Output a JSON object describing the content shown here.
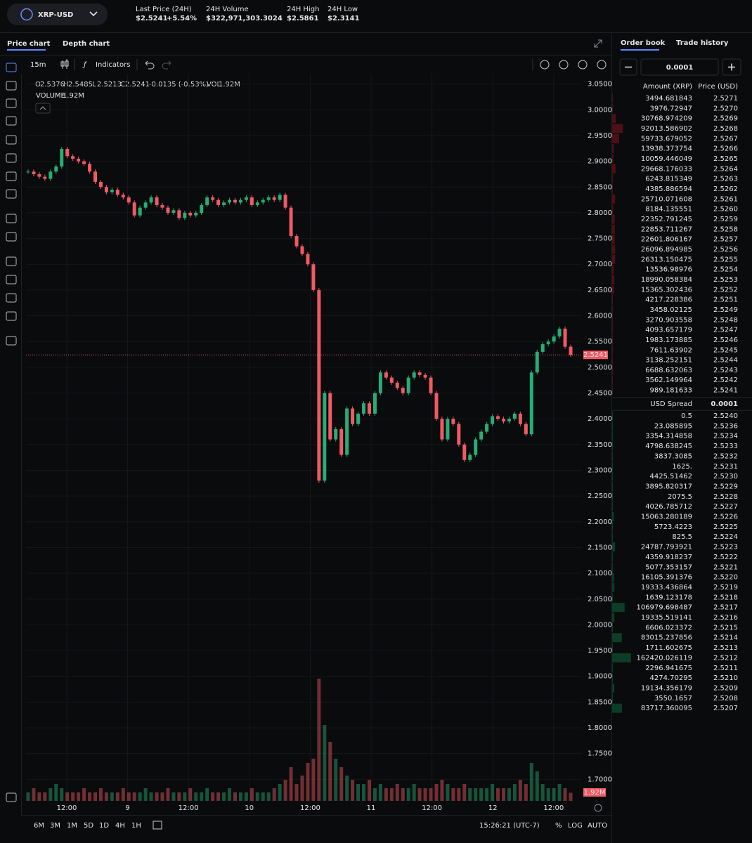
{
  "header": {
    "pair": "XRP-USD",
    "stats": [
      {
        "label": "Last Price (24H)",
        "value": "$2.5241",
        "change": "+5.54%"
      },
      {
        "label": "24H Volume",
        "value": "$322,971,303.3024"
      },
      {
        "label": "24H High",
        "value": "$2.5861"
      },
      {
        "label": "24H Low",
        "value": "$2.3141"
      }
    ]
  },
  "tabs": [
    "Price chart",
    "Depth chart"
  ],
  "toolbar": {
    "interval": "15m",
    "indicators": "Indicators"
  },
  "legend": {
    "items": [
      {
        "key": "O",
        "value": "2.5376"
      },
      {
        "key": "H",
        "value": "2.5485"
      },
      {
        "key": "L",
        "value": "2.5213"
      },
      {
        "key": "C",
        "value": "2.5241"
      }
    ],
    "change": "-0.0135 (-0.53%)",
    "vol_key": "VOL",
    "vol": "1.92M",
    "volume_title": "VOLUME",
    "volume_value": "1.92M"
  },
  "chart": {
    "type": "candlestick",
    "ylim": [
      1.68,
      3.07
    ],
    "yticks": [
      {
        "value": 3.05,
        "label": "3.0500"
      },
      {
        "value": 3.0,
        "label": "3.0000"
      },
      {
        "value": 2.95,
        "label": "2.9500"
      },
      {
        "value": 2.9,
        "label": "2.9000"
      },
      {
        "value": 2.85,
        "label": "2.8500"
      },
      {
        "value": 2.8,
        "label": "2.8000"
      },
      {
        "value": 2.75,
        "label": "2.7500"
      },
      {
        "value": 2.7,
        "label": "2.7000"
      },
      {
        "value": 2.65,
        "label": "2.6500"
      },
      {
        "value": 2.6,
        "label": "2.6000"
      },
      {
        "value": 2.55,
        "label": "2.5500"
      },
      {
        "value": 2.5,
        "label": "2.5000"
      },
      {
        "value": 2.45,
        "label": "2.4500"
      },
      {
        "value": 2.4,
        "label": "2.4000"
      },
      {
        "value": 2.35,
        "label": "2.3500"
      },
      {
        "value": 2.3,
        "label": "2.3000"
      },
      {
        "value": 2.25,
        "label": "2.2500"
      },
      {
        "value": 2.2,
        "label": "2.2000"
      },
      {
        "value": 2.15,
        "label": "2.1500"
      },
      {
        "value": 2.1,
        "label": "2.1000"
      },
      {
        "value": 2.05,
        "label": "2.0500"
      },
      {
        "value": 2.0,
        "label": "2.0000"
      },
      {
        "value": 1.95,
        "label": "1.9500"
      },
      {
        "value": 1.9,
        "label": "1.9000"
      },
      {
        "value": 1.85,
        "label": "1.8500"
      },
      {
        "value": 1.8,
        "label": "1.8000"
      },
      {
        "value": 1.75,
        "label": "1.7500"
      },
      {
        "value": 1.7,
        "label": "1.7000"
      }
    ],
    "xlabels": [
      "12:00",
      "9",
      "12:00",
      "10",
      "12:00",
      "11",
      "12:00",
      "12",
      "12:00"
    ],
    "closes": [
      2.88,
      2.875,
      2.87,
      2.866,
      2.88,
      2.89,
      2.924,
      2.91,
      2.905,
      2.9,
      2.895,
      2.88,
      2.86,
      2.85,
      2.84,
      2.845,
      2.835,
      2.83,
      2.82,
      2.795,
      2.81,
      2.82,
      2.83,
      2.815,
      2.81,
      2.8,
      2.805,
      2.79,
      2.8,
      2.795,
      2.8,
      2.815,
      2.83,
      2.825,
      2.815,
      2.82,
      2.825,
      2.82,
      2.825,
      2.83,
      2.815,
      2.82,
      2.825,
      2.83,
      2.825,
      2.835,
      2.81,
      2.755,
      2.735,
      2.72,
      2.7,
      2.65,
      2.28,
      2.45,
      2.36,
      2.38,
      2.33,
      2.42,
      2.39,
      2.41,
      2.43,
      2.41,
      2.45,
      2.49,
      2.48,
      2.47,
      2.46,
      2.45,
      2.48,
      2.49,
      2.485,
      2.48,
      2.45,
      2.4,
      2.36,
      2.4,
      2.39,
      2.35,
      2.32,
      2.33,
      2.36,
      2.375,
      2.39,
      2.405,
      2.4,
      2.395,
      2.4,
      2.41,
      2.39,
      2.37,
      2.49,
      2.53,
      2.545,
      2.55,
      2.56,
      2.575,
      2.54,
      2.5241
    ],
    "volumes": [
      2,
      3,
      2,
      2,
      3,
      4,
      3,
      2,
      2,
      2,
      3,
      2,
      2,
      3,
      2,
      2,
      2,
      3,
      2,
      2,
      2,
      3,
      2,
      2,
      2,
      3,
      2,
      2,
      2,
      3,
      2,
      2,
      3,
      2,
      2,
      2,
      3,
      2,
      2,
      2,
      3,
      2,
      2,
      2,
      3,
      4,
      5,
      8,
      4,
      6,
      9,
      10,
      29,
      18,
      14,
      10,
      8,
      6,
      5,
      4,
      4,
      5,
      3,
      4,
      3,
      3,
      4,
      3,
      3,
      4,
      3,
      3,
      3,
      4,
      5,
      4,
      3,
      3,
      4,
      3,
      3,
      3,
      3,
      4,
      3,
      3,
      3,
      4,
      5,
      4,
      9,
      7,
      4,
      3,
      3,
      4,
      3,
      1.92
    ],
    "price_tag": "2.5241",
    "volume_tag": "1.92M"
  },
  "bottom": {
    "ranges": [
      "6M",
      "3M",
      "1M",
      "5D",
      "1D",
      "4H",
      "1H"
    ],
    "time": "15:26:21 (UTC-7)",
    "percent": "%",
    "log": "LOG",
    "auto": "AUTO"
  },
  "orderbook": {
    "tabs": [
      "Order book",
      "Trade history"
    ],
    "step": "0.0001",
    "amount_header": "Amount (XRP)",
    "price_header": "Price (USD)",
    "asks": [
      [
        "3494.681843",
        "2.5271"
      ],
      [
        "3976.72947",
        "2.5270"
      ],
      [
        "30768.974209",
        "2.5269"
      ],
      [
        "92013.586902",
        "2.5268"
      ],
      [
        "59733.679052",
        "2.5267"
      ],
      [
        "13938.373754",
        "2.5266"
      ],
      [
        "10059.446049",
        "2.5265"
      ],
      [
        "29668.176033",
        "2.5264"
      ],
      [
        "6243.815349",
        "2.5263"
      ],
      [
        "4385.886594",
        "2.5262"
      ],
      [
        "25710.071608",
        "2.5261"
      ],
      [
        "8184.135551",
        "2.5260"
      ],
      [
        "22352.791245",
        "2.5259"
      ],
      [
        "22853.711267",
        "2.5258"
      ],
      [
        "22601.806167",
        "2.5257"
      ],
      [
        "26096.894985",
        "2.5256"
      ],
      [
        "26313.150475",
        "2.5255"
      ],
      [
        "13536.98976",
        "2.5254"
      ],
      [
        "18990.058384",
        "2.5253"
      ],
      [
        "15365.302436",
        "2.5252"
      ],
      [
        "4217.228386",
        "2.5251"
      ],
      [
        "3458.02125",
        "2.5249"
      ],
      [
        "3270.903558",
        "2.5248"
      ],
      [
        "4093.657179",
        "2.5247"
      ],
      [
        "1983.173885",
        "2.5246"
      ],
      [
        "7611.63902",
        "2.5245"
      ],
      [
        "3138.252151",
        "2.5244"
      ],
      [
        "6688.632063",
        "2.5243"
      ],
      [
        "3562.149964",
        "2.5242"
      ],
      [
        "989.181633",
        "2.5241"
      ]
    ],
    "spread_label": "USD Spread",
    "spread": "0.0001",
    "bids": [
      [
        "0.5",
        "2.5240"
      ],
      [
        "23.085895",
        "2.5236"
      ],
      [
        "3354.314858",
        "2.5234"
      ],
      [
        "4798.638245",
        "2.5233"
      ],
      [
        "3837.3085",
        "2.5232"
      ],
      [
        "1625.",
        "2.5231"
      ],
      [
        "4425.51462",
        "2.5230"
      ],
      [
        "3895.820317",
        "2.5229"
      ],
      [
        "2075.5",
        "2.5228"
      ],
      [
        "4026.785712",
        "2.5227"
      ],
      [
        "15063.280189",
        "2.5226"
      ],
      [
        "5723.4223",
        "2.5225"
      ],
      [
        "825.5",
        "2.5224"
      ],
      [
        "24787.793921",
        "2.5223"
      ],
      [
        "4359.918237",
        "2.5222"
      ],
      [
        "5077.353157",
        "2.5221"
      ],
      [
        "16105.391376",
        "2.5220"
      ],
      [
        "19333.436864",
        "2.5219"
      ],
      [
        "1639.123178",
        "2.5218"
      ],
      [
        "106979.698487",
        "2.5217"
      ],
      [
        "19335.519141",
        "2.5216"
      ],
      [
        "6606.023372",
        "2.5215"
      ],
      [
        "83015.237856",
        "2.5214"
      ],
      [
        "1711.602675",
        "2.5213"
      ],
      [
        "162420.026119",
        "2.5212"
      ],
      [
        "2296.941675",
        "2.5211"
      ],
      [
        "4274.70295",
        "2.5210"
      ],
      [
        "19134.356179",
        "2.5209"
      ],
      [
        "3550.1657",
        "2.5208"
      ],
      [
        "83717.360095",
        "2.5207"
      ]
    ]
  }
}
